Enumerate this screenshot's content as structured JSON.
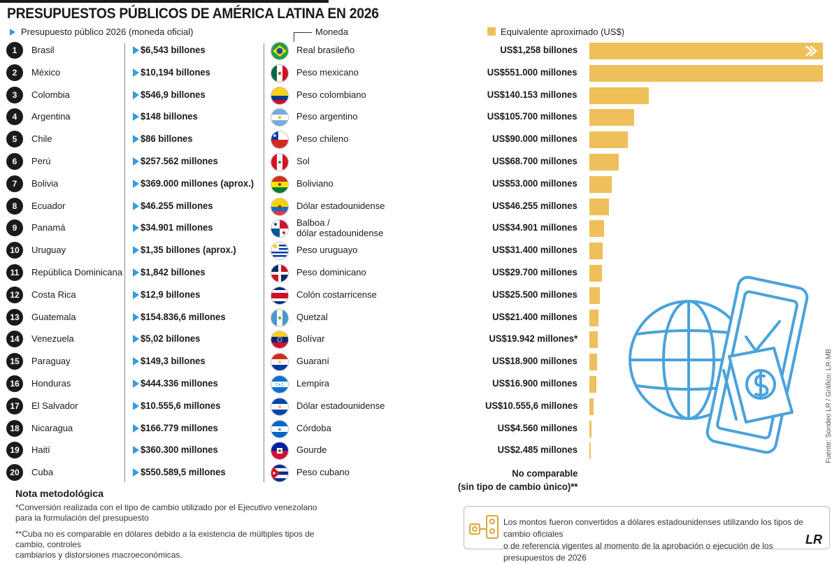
{
  "title": "PRESUPUESTOS PÚBLICOS DE AMÉRICA LATINA EN 2026",
  "headers": {
    "budget": "Presupuesto público 2026 (moneda oficial)",
    "currency": "Moneda",
    "usd": "Equivalente aproximado (US$)"
  },
  "colors": {
    "accent_blue": "#3a9ad9",
    "bar_gold": "#eec05a",
    "rank_black": "#1a1a1a"
  },
  "rows": [
    {
      "rank": "1",
      "country": "Brasil",
      "budget": "$6,543 billones",
      "currency": "Real brasileño",
      "usd": "US$1,258 billones",
      "flag": "brazil-flag-icon"
    },
    {
      "rank": "2",
      "country": "México",
      "budget": "$10,194 billones",
      "currency": "Peso mexicano",
      "usd": "US$551.000 millones",
      "flag": "mexico-flag-icon"
    },
    {
      "rank": "3",
      "country": "Colombia",
      "budget": "$546,9 billones",
      "currency": "Peso colombiano",
      "usd": "US$140.153 millones",
      "flag": "colombia-flag-icon"
    },
    {
      "rank": "4",
      "country": "Argentina",
      "budget": "$148 billones",
      "currency": "Peso argentino",
      "usd": "US$105.700 millones",
      "flag": "argentina-flag-icon"
    },
    {
      "rank": "5",
      "country": "Chile",
      "budget": "$86 billones",
      "currency": "Peso chileno",
      "usd": "US$90.000 millones",
      "flag": "chile-flag-icon"
    },
    {
      "rank": "6",
      "country": "Perú",
      "budget": "$257.562 millones",
      "currency": "Sol",
      "usd": "US$68.700 millones",
      "flag": "peru-flag-icon"
    },
    {
      "rank": "7",
      "country": "Bolivia",
      "budget": "$369.000 millones (aprox.)",
      "currency": "Boliviano",
      "usd": "US$53.000 millones",
      "flag": "bolivia-flag-icon"
    },
    {
      "rank": "8",
      "country": "Ecuador",
      "budget": "$46.255 millones",
      "currency": "Dólar estadounidense",
      "usd": "US$46.255 millones",
      "flag": "ecuador-flag-icon"
    },
    {
      "rank": "9",
      "country": "Panamá",
      "budget": "$34.901 millones",
      "currency_line1": "Balboa /",
      "currency_line2": "dólar estadounidense",
      "usd": "US$34.901 millones",
      "flag": "panama-flag-icon"
    },
    {
      "rank": "10",
      "country": "Uruguay",
      "budget": "$1,35 billones (aprox.)",
      "currency": "Peso uruguayo",
      "usd": "US$31.400 millones",
      "flag": "uruguay-flag-icon"
    },
    {
      "rank": "11",
      "country": "República Dominicana",
      "budget": "$1,842 billones",
      "currency": "Peso dominicano",
      "usd": "US$29.700 millones",
      "flag": "dominican-republic-flag-icon"
    },
    {
      "rank": "12",
      "country": "Costa Rica",
      "budget": "$12,9 billones",
      "currency": "Colón costarricense",
      "usd": "US$25.500 millones",
      "flag": "costa-rica-flag-icon"
    },
    {
      "rank": "13",
      "country": "Guatemala",
      "budget": "$154.836,6 millones",
      "currency": "Quetzal",
      "usd": "US$21.400 millones",
      "flag": "guatemala-flag-icon"
    },
    {
      "rank": "14",
      "country": "Venezuela",
      "budget": "$5,02 billones",
      "currency": "Bolívar",
      "usd": "US$19.942 millones*",
      "flag": "venezuela-flag-icon"
    },
    {
      "rank": "15",
      "country": "Paraguay",
      "budget": "$149,3 billones",
      "currency": "Guaraní",
      "usd": "US$18.900 millones",
      "flag": "paraguay-flag-icon"
    },
    {
      "rank": "16",
      "country": "Honduras",
      "budget": "$444.336 millones",
      "currency": "Lempira",
      "usd": "US$16.900 millones",
      "flag": "honduras-flag-icon"
    },
    {
      "rank": "17",
      "country": "El Salvador",
      "budget": "$10.555,6 millones",
      "currency": "Dólar estadounidense",
      "usd": "US$10.555,6 millones",
      "flag": "el-salvador-flag-icon"
    },
    {
      "rank": "18",
      "country": "Nicaragua",
      "budget": "$166.779 millones",
      "currency": "Córdoba",
      "usd": "US$4.560 millones",
      "flag": "nicaragua-flag-icon"
    },
    {
      "rank": "19",
      "country": "Haití",
      "budget": "$360.300 millones",
      "currency": "Gourde",
      "usd": "US$2.485 millones",
      "flag": "haiti-flag-icon"
    },
    {
      "rank": "20",
      "country": "Cuba",
      "budget": "$550.589,5 millones",
      "currency": "Peso cubano",
      "flag": "cuba-flag-icon"
    }
  ],
  "cuba_usd_line1": "No comparable",
  "cuba_usd_line2": "(sin tipo de cambio único)**",
  "notes": {
    "title": "Nota metodológica",
    "note1_line1": "*Conversión realizada con el tipo de cambio utilizado por el Ejecutivo venezolano",
    "note1_line2": "para la formulación del presupuesto",
    "note2_line1": "**Cuba no es comparable en dólares debido a la existencia de múltiples tipos de cambio, controles",
    "note2_line2": "cambiarios y distorsiones macroeconómicas."
  },
  "info": {
    "line1": "Los montos fueron convertidos a dólares estadounidenses utilizando los tipos de cambio oficiales",
    "line2": "o de referencia vigentes al momento de la aprobación o ejecución de los presupuestos de 2026"
  },
  "source": "Fuente: Sondeo LR / Gráfico: LR-MB",
  "logo": "LR",
  "chart_data": {
    "type": "bar",
    "orientation": "horizontal",
    "title": "PRESUPUESTOS PÚBLICOS DE AMÉRICA LATINA EN 2026",
    "xlabel": "Equivalente aproximado (US$)",
    "categories": [
      "Brasil",
      "México",
      "Colombia",
      "Argentina",
      "Chile",
      "Perú",
      "Bolivia",
      "Ecuador",
      "Panamá",
      "Uruguay",
      "República Dominicana",
      "Costa Rica",
      "Guatemala",
      "Venezuela",
      "Paraguay",
      "Honduras",
      "El Salvador",
      "Nicaragua",
      "Haití"
    ],
    "values_usd_millions": [
      1258000,
      551000,
      140153,
      105700,
      90000,
      68700,
      53000,
      46255,
      34901,
      31400,
      29700,
      25500,
      21400,
      19942,
      18900,
      16900,
      10555.6,
      4560,
      2485
    ],
    "axis_cap_usd_millions": 551000,
    "brazil_bar_truncated": true
  }
}
